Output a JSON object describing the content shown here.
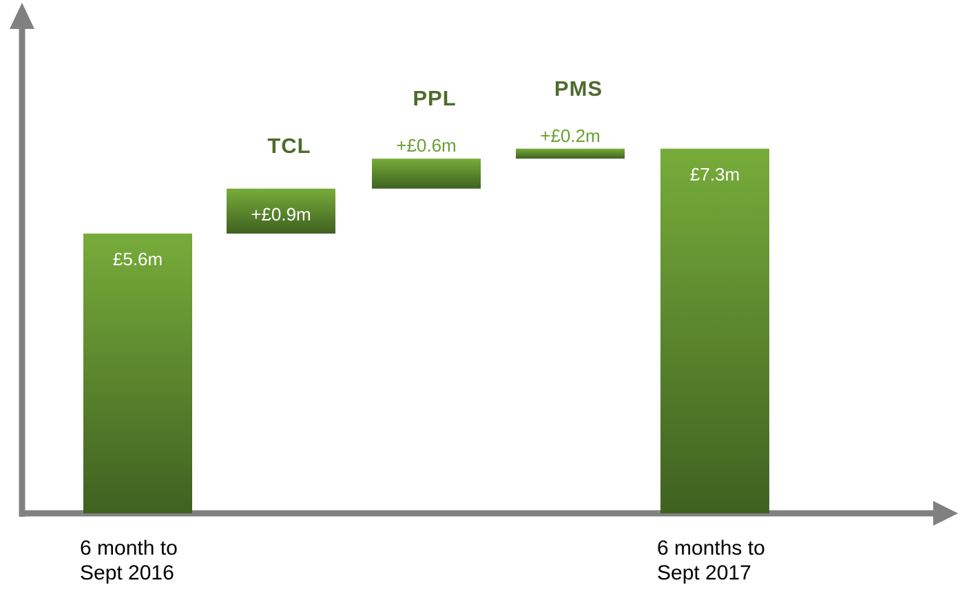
{
  "chart_data": {
    "type": "waterfall",
    "categories": [
      "6 month to\nSept 2016",
      "TCL",
      "PPL",
      "PMS",
      "6 months to\nSept 2017"
    ],
    "values": [
      5.6,
      0.9,
      0.6,
      0.2,
      7.3
    ],
    "value_labels": [
      "£5.6m",
      "+£0.9m",
      "+£0.6m",
      "+£0.2m",
      "£7.3m"
    ],
    "measures": [
      "absolute",
      "relative",
      "relative",
      "relative",
      "total"
    ],
    "color": "#6b9e35",
    "ylim": [
      0,
      10
    ]
  }
}
